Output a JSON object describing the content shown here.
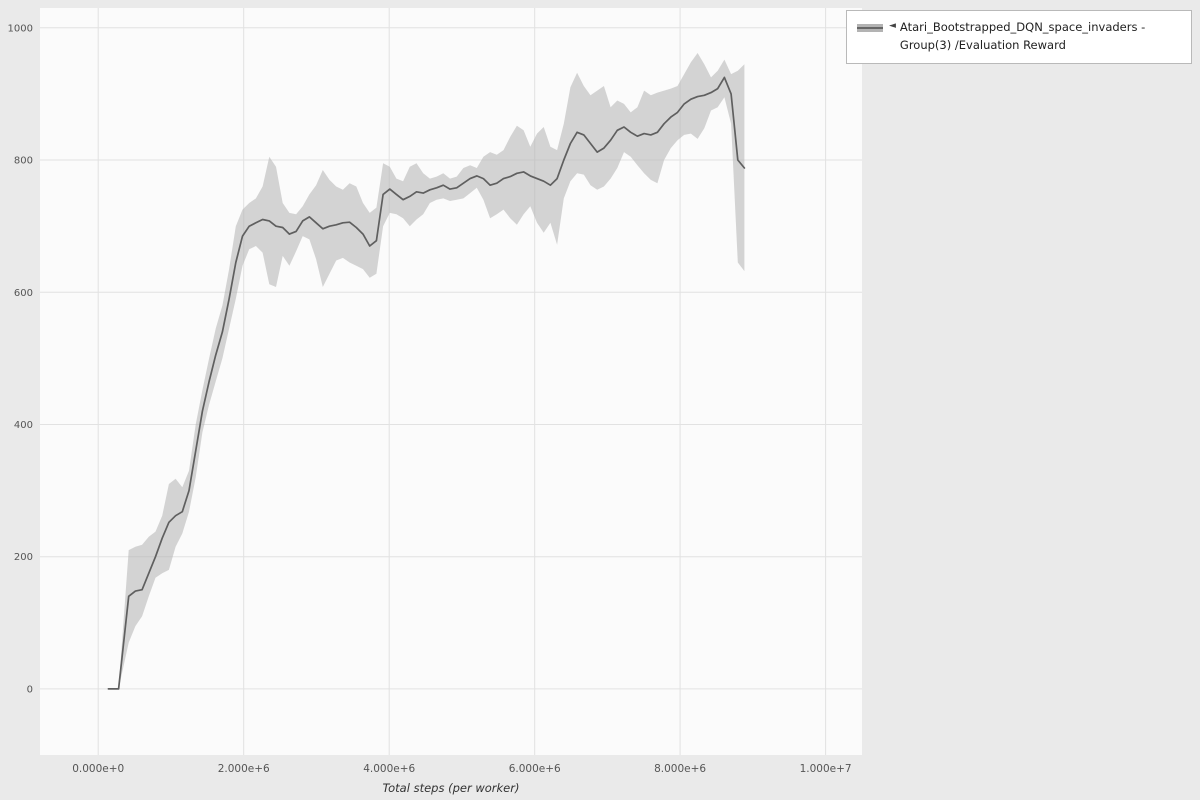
{
  "legend": {
    "marker": "◄",
    "label": "Atari_Bootstrapped_DQN_space_invaders - Group(3) /Evaluation Reward"
  },
  "chart_data": {
    "type": "line",
    "title": "",
    "xlabel": "Total steps (per worker)",
    "ylabel": "",
    "legend_position": "top-right",
    "grid": true,
    "xlim_millions": [
      -0.8,
      10.5
    ],
    "ylim": [
      -100,
      1030
    ],
    "x_ticks": [
      {
        "value_millions": 0,
        "label": "0.000e+0"
      },
      {
        "value_millions": 2,
        "label": "2.000e+6"
      },
      {
        "value_millions": 4,
        "label": "4.000e+6"
      },
      {
        "value_millions": 6,
        "label": "6.000e+6"
      },
      {
        "value_millions": 8,
        "label": "8.000e+6"
      },
      {
        "value_millions": 10,
        "label": "1.000e+7"
      }
    ],
    "y_ticks": [
      {
        "value": 0,
        "label": "0"
      },
      {
        "value": 200,
        "label": "200"
      },
      {
        "value": 400,
        "label": "400"
      },
      {
        "value": 600,
        "label": "600"
      },
      {
        "value": 800,
        "label": "800"
      },
      {
        "value": 1000,
        "label": "1000"
      }
    ],
    "colors": {
      "background": "#eaeaea",
      "plot_bg": "#fbfbfb",
      "grid": "#e2e2e2",
      "line": "#5f5f5f",
      "band": "#b3b3b3",
      "text": "#555555"
    },
    "series": [
      {
        "name": "Atari_Bootstrapped_DQN_space_invaders - Group(3) /Evaluation Reward",
        "color": "#5f5f5f",
        "band_color": "#b3b3b3",
        "x_millions": [
          0.14,
          0.28,
          0.42,
          0.512,
          0.604,
          0.696,
          0.788,
          0.88,
          0.972,
          1.064,
          1.156,
          1.248,
          1.34,
          1.432,
          1.524,
          1.616,
          1.708,
          1.8,
          1.892,
          1.984,
          2.076,
          2.168,
          2.26,
          2.352,
          2.444,
          2.536,
          2.628,
          2.72,
          2.812,
          2.904,
          2.996,
          3.088,
          3.18,
          3.272,
          3.364,
          3.456,
          3.548,
          3.64,
          3.732,
          3.824,
          3.916,
          4.008,
          4.1,
          4.192,
          4.284,
          4.376,
          4.468,
          4.56,
          4.652,
          4.744,
          4.836,
          4.928,
          5.02,
          5.112,
          5.204,
          5.296,
          5.388,
          5.48,
          5.572,
          5.664,
          5.756,
          5.848,
          5.94,
          6.032,
          6.124,
          6.216,
          6.308,
          6.4,
          6.492,
          6.584,
          6.676,
          6.768,
          6.86,
          6.952,
          7.044,
          7.136,
          7.228,
          7.32,
          7.412,
          7.504,
          7.596,
          7.688,
          7.78,
          7.872,
          7.964,
          8.056,
          8.148,
          8.24,
          8.332,
          8.424,
          8.516,
          8.608,
          8.7,
          8.792,
          8.884
        ],
        "mean": [
          0,
          0,
          140,
          148,
          150,
          175,
          200,
          228,
          252,
          262,
          268,
          300,
          360,
          420,
          465,
          505,
          540,
          590,
          645,
          685,
          700,
          705,
          710,
          708,
          700,
          698,
          688,
          692,
          708,
          714,
          705,
          696,
          700,
          702,
          705,
          706,
          698,
          688,
          670,
          678,
          748,
          756,
          748,
          740,
          745,
          752,
          750,
          755,
          758,
          762,
          756,
          758,
          765,
          772,
          776,
          772,
          762,
          765,
          772,
          775,
          780,
          782,
          776,
          772,
          768,
          762,
          772,
          800,
          825,
          842,
          838,
          825,
          812,
          818,
          830,
          845,
          850,
          842,
          836,
          840,
          838,
          842,
          855,
          865,
          872,
          885,
          892,
          896,
          898,
          902,
          908,
          925,
          900,
          800,
          788
        ],
        "upper": [
          0,
          0,
          210,
          215,
          218,
          230,
          238,
          262,
          310,
          318,
          305,
          330,
          400,
          452,
          500,
          545,
          580,
          635,
          700,
          725,
          735,
          742,
          760,
          805,
          790,
          735,
          720,
          718,
          730,
          748,
          762,
          785,
          770,
          760,
          755,
          765,
          760,
          735,
          720,
          728,
          795,
          790,
          772,
          768,
          790,
          795,
          780,
          772,
          775,
          780,
          772,
          775,
          788,
          792,
          788,
          805,
          812,
          808,
          815,
          835,
          852,
          845,
          820,
          840,
          850,
          820,
          815,
          855,
          910,
          932,
          912,
          898,
          905,
          912,
          880,
          890,
          885,
          872,
          880,
          905,
          898,
          902,
          905,
          908,
          912,
          930,
          948,
          962,
          945,
          925,
          935,
          952,
          930,
          935,
          945
        ],
        "lower": [
          0,
          0,
          70,
          95,
          110,
          140,
          168,
          175,
          180,
          215,
          235,
          268,
          320,
          388,
          430,
          465,
          500,
          545,
          590,
          640,
          665,
          670,
          660,
          612,
          608,
          655,
          640,
          662,
          685,
          680,
          650,
          608,
          628,
          648,
          652,
          645,
          640,
          635,
          622,
          628,
          700,
          720,
          718,
          712,
          700,
          710,
          718,
          735,
          740,
          742,
          738,
          740,
          742,
          750,
          758,
          740,
          712,
          718,
          725,
          712,
          702,
          718,
          730,
          705,
          690,
          705,
          672,
          742,
          768,
          780,
          778,
          762,
          755,
          760,
          772,
          788,
          812,
          805,
          792,
          780,
          770,
          765,
          800,
          818,
          830,
          838,
          840,
          832,
          848,
          875,
          880,
          895,
          855,
          645,
          632
        ]
      }
    ]
  }
}
